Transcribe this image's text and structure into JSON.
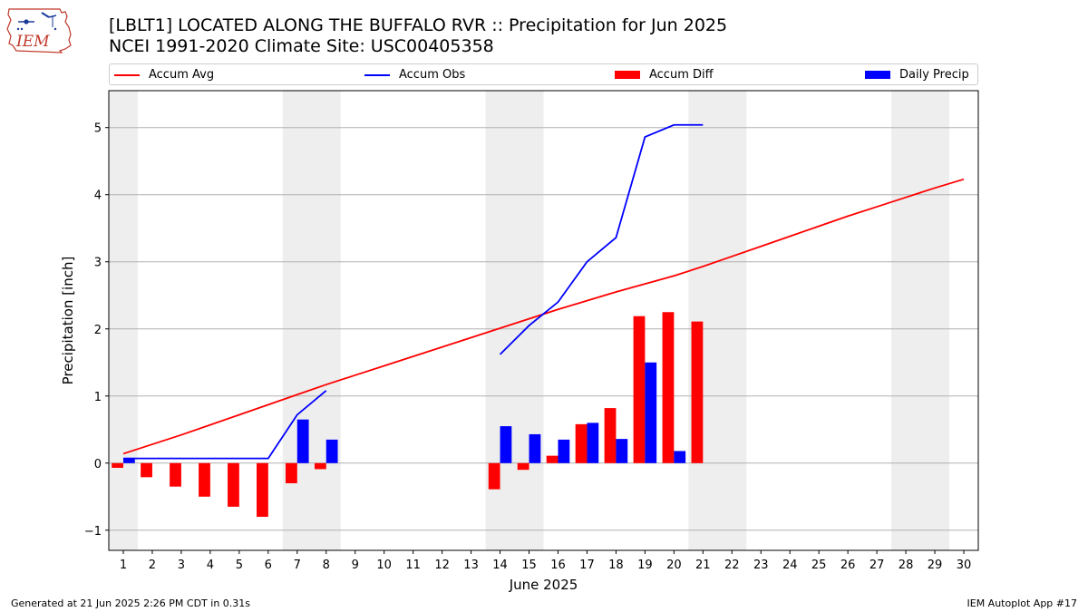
{
  "header": {
    "title_line1": "[LBLT1] LOCATED ALONG THE BUFFALO RVR :: Precipitation for Jun 2025",
    "title_line2": "NCEI 1991-2020 Climate Site: USC00405358"
  },
  "logo": {
    "text": "IEM"
  },
  "legend": {
    "items": [
      {
        "label": "Accum Avg",
        "color": "#ff0000",
        "kind": "line"
      },
      {
        "label": "Accum Obs",
        "color": "#0000ff",
        "kind": "line"
      },
      {
        "label": "Accum Diff",
        "color": "#ff0000",
        "kind": "patch"
      },
      {
        "label": "Daily Precip",
        "color": "#0000ff",
        "kind": "patch"
      }
    ]
  },
  "footer": {
    "left": "Generated at 21 Jun 2025 2:26 PM CDT in 0.31s",
    "right": "IEM Autoplot App #17"
  },
  "chart_data": {
    "type": "bar",
    "xlabel": "June 2025",
    "ylabel": "Precipitation [inch]",
    "xlim": [
      0.5,
      30.5
    ],
    "ylim": [
      -1.3,
      5.55
    ],
    "x_ticks": [
      1,
      2,
      3,
      4,
      5,
      6,
      7,
      8,
      9,
      10,
      11,
      12,
      13,
      14,
      15,
      16,
      17,
      18,
      19,
      20,
      21,
      22,
      23,
      24,
      25,
      26,
      27,
      28,
      29,
      30
    ],
    "y_ticks": [
      -1,
      0,
      1,
      2,
      3,
      4,
      5
    ],
    "y_tick_labels": [
      "−1",
      "0",
      "1",
      "2",
      "3",
      "4",
      "5"
    ],
    "grid": "horizontal",
    "weekend_shading": [
      [
        0.5,
        1.5
      ],
      [
        6.5,
        8.5
      ],
      [
        13.5,
        15.5
      ],
      [
        20.5,
        22.5
      ],
      [
        27.5,
        29.5
      ]
    ],
    "shade_color": "#eeeeee",
    "series": [
      {
        "name": "Accum Avg",
        "kind": "line",
        "color": "#ff0000",
        "x": [
          1,
          2,
          3,
          4,
          5,
          6,
          7,
          8,
          9,
          10,
          11,
          12,
          13,
          14,
          15,
          16,
          17,
          18,
          19,
          20,
          21,
          22,
          23,
          24,
          25,
          26,
          27,
          28,
          29,
          30
        ],
        "values": [
          0.14,
          0.28,
          0.42,
          0.57,
          0.72,
          0.87,
          1.02,
          1.17,
          1.31,
          1.45,
          1.59,
          1.73,
          1.87,
          2.01,
          2.15,
          2.29,
          2.42,
          2.55,
          2.67,
          2.79,
          2.93,
          3.08,
          3.23,
          3.38,
          3.53,
          3.68,
          3.82,
          3.96,
          4.1,
          4.23
        ]
      },
      {
        "name": "Accum Obs",
        "kind": "line",
        "color": "#0000ff",
        "segments": [
          {
            "x": [
              1,
              2,
              3,
              4,
              5,
              6,
              7,
              8
            ],
            "values": [
              0.07,
              0.07,
              0.07,
              0.07,
              0.07,
              0.07,
              0.72,
              1.08
            ]
          },
          {
            "x": [
              14,
              15,
              16,
              17,
              18,
              19,
              20,
              21
            ],
            "values": [
              1.62,
              2.05,
              2.4,
              3.0,
              3.36,
              4.86,
              5.04,
              5.04
            ]
          }
        ]
      },
      {
        "name": "Accum Diff",
        "kind": "bar",
        "color": "#ff0000",
        "x": [
          1,
          2,
          3,
          4,
          5,
          6,
          7,
          8,
          14,
          15,
          16,
          17,
          18,
          19,
          20,
          21
        ],
        "values": [
          -0.07,
          -0.21,
          -0.35,
          -0.5,
          -0.65,
          -0.8,
          -0.3,
          -0.09,
          -0.39,
          -0.1,
          0.11,
          0.58,
          0.82,
          2.19,
          2.25,
          2.11
        ]
      },
      {
        "name": "Daily Precip",
        "kind": "bar",
        "color": "#0000ff",
        "x": [
          1,
          7,
          8,
          14,
          15,
          16,
          17,
          18,
          19,
          20
        ],
        "values": [
          0.07,
          0.65,
          0.35,
          0.55,
          0.43,
          0.35,
          0.6,
          0.36,
          1.5,
          0.18
        ]
      }
    ]
  }
}
